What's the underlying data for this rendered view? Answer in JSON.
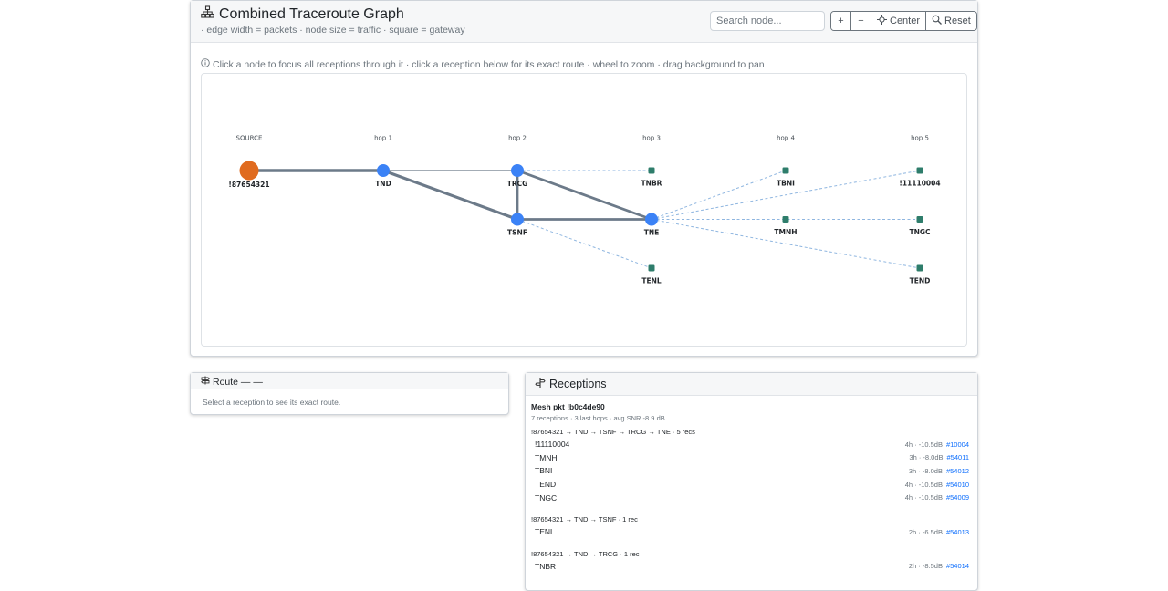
{
  "graph_panel": {
    "title": "Combined Traceroute Graph",
    "subtitle": "· edge width = packets · node size = traffic · square = gateway",
    "search_placeholder": "Search node...",
    "zoom_in_label": "+",
    "zoom_out_label": "−",
    "center_label": "Center",
    "reset_label": "Reset",
    "hint": "Click a node to focus all receptions through it · click a reception below for its exact route · wheel to zoom · drag background to pan",
    "hops": [
      "SOURCE",
      "hop 1",
      "hop 2",
      "hop 3",
      "hop 4",
      "hop 5"
    ],
    "colors": {
      "source": "#e06b1f",
      "relay": "#3b82f6",
      "gateway": "#2e7d6b",
      "edge": "#6c7a89",
      "dashed_edge": "#8fb6e0"
    },
    "nodes": [
      {
        "id": "!87654321",
        "hop": 0,
        "row": 0,
        "kind": "source"
      },
      {
        "id": "TND",
        "hop": 1,
        "row": 0,
        "kind": "relay"
      },
      {
        "id": "TRCG",
        "hop": 2,
        "row": 0,
        "kind": "relay"
      },
      {
        "id": "TSNF",
        "hop": 2,
        "row": 1,
        "kind": "relay"
      },
      {
        "id": "TNBR",
        "hop": 3,
        "row": 0,
        "kind": "gateway"
      },
      {
        "id": "TNE",
        "hop": 3,
        "row": 1,
        "kind": "relay"
      },
      {
        "id": "TENL",
        "hop": 3,
        "row": 2,
        "kind": "gateway"
      },
      {
        "id": "TBNI",
        "hop": 4,
        "row": 0,
        "kind": "gateway"
      },
      {
        "id": "TMNH",
        "hop": 4,
        "row": 1,
        "kind": "gateway"
      },
      {
        "id": "!11110004",
        "hop": 5,
        "row": 0,
        "kind": "gateway"
      },
      {
        "id": "TNGC",
        "hop": 5,
        "row": 1,
        "kind": "gateway"
      },
      {
        "id": "TEND",
        "hop": 5,
        "row": 2,
        "kind": "gateway"
      }
    ],
    "edges": [
      {
        "from": "!87654321",
        "to": "TND",
        "packets": 7,
        "style": "solid"
      },
      {
        "from": "TND",
        "to": "TRCG",
        "packets": 1,
        "style": "solid"
      },
      {
        "from": "TND",
        "to": "TSNF",
        "packets": 6,
        "style": "solid"
      },
      {
        "from": "TSNF",
        "to": "TRCG",
        "packets": 5,
        "style": "solid"
      },
      {
        "from": "TRCG",
        "to": "TNE",
        "packets": 5,
        "style": "solid"
      },
      {
        "from": "TSNF",
        "to": "TNE",
        "packets": 5,
        "style": "solid"
      },
      {
        "from": "TRCG",
        "to": "TNBR",
        "packets": 1,
        "style": "dashed"
      },
      {
        "from": "TSNF",
        "to": "TENL",
        "packets": 1,
        "style": "dashed"
      },
      {
        "from": "TNE",
        "to": "TBNI",
        "packets": 1,
        "style": "dashed"
      },
      {
        "from": "TNE",
        "to": "!11110004",
        "packets": 1,
        "style": "dashed"
      },
      {
        "from": "TNE",
        "to": "TMNH",
        "packets": 1,
        "style": "dashed"
      },
      {
        "from": "TNE",
        "to": "TNGC",
        "packets": 1,
        "style": "dashed"
      },
      {
        "from": "TNE",
        "to": "TEND",
        "packets": 1,
        "style": "dashed"
      }
    ]
  },
  "route_panel": {
    "title": "Route — —",
    "empty_text": "Select a reception to see its exact route."
  },
  "receptions_panel": {
    "title": "Receptions",
    "packet_title": "Mesh pkt !b0c4de90",
    "packet_summary": "7 receptions · 3 last hops · avg SNR -8.9 dB",
    "groups": [
      {
        "route": "!87654321 → TND → TSNF → TRCG → TNE · 5 recs",
        "rows": [
          {
            "node": "!11110004",
            "meta": "4h · -10.5dB",
            "link": "#10004"
          },
          {
            "node": "TMNH",
            "meta": "3h · -8.0dB",
            "link": "#54011"
          },
          {
            "node": "TBNI",
            "meta": "3h · -8.0dB",
            "link": "#54012"
          },
          {
            "node": "TEND",
            "meta": "4h · -10.5dB",
            "link": "#54010"
          },
          {
            "node": "TNGC",
            "meta": "4h · -10.5dB",
            "link": "#54009"
          }
        ]
      },
      {
        "route": "!87654321 → TND → TSNF · 1 rec",
        "rows": [
          {
            "node": "TENL",
            "meta": "2h · -6.5dB",
            "link": "#54013"
          }
        ]
      },
      {
        "route": "!87654321 → TND → TRCG · 1 rec",
        "rows": [
          {
            "node": "TNBR",
            "meta": "2h · -8.5dB",
            "link": "#54014"
          }
        ]
      }
    ]
  }
}
